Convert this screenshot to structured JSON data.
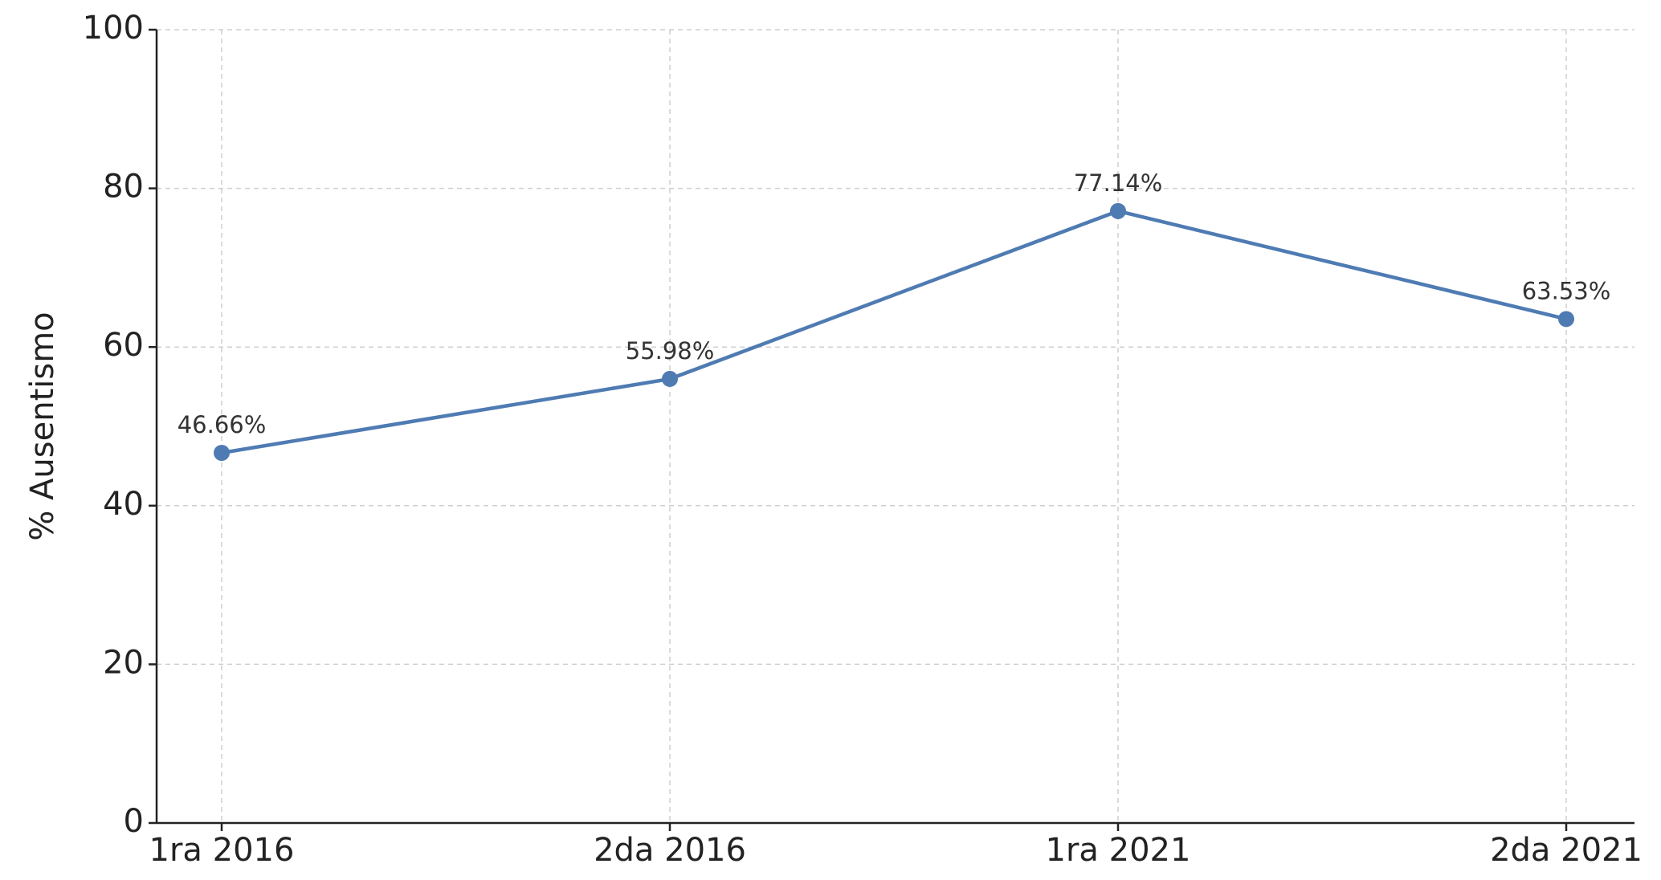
{
  "chart_data": {
    "type": "line",
    "y_label": "% Ausentismo",
    "categories": [
      "1ra 2016",
      "2da 2016",
      "1ra 2021",
      "2da 2021"
    ],
    "values": [
      46.66,
      55.98,
      77.14,
      63.53
    ],
    "value_labels": [
      "46.66%",
      "55.98%",
      "77.14%",
      "63.53%"
    ],
    "color": "#4f7bb3",
    "ylim": [
      0,
      100
    ],
    "yticks": [
      0,
      20,
      40,
      60,
      80,
      100
    ],
    "grid": true
  }
}
